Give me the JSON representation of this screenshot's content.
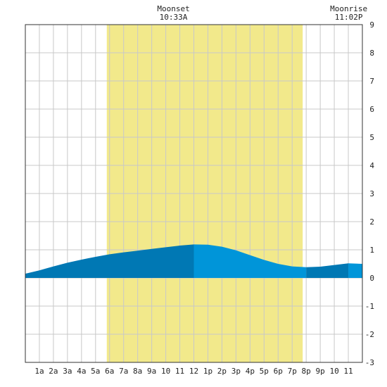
{
  "chart_data": {
    "type": "area",
    "title": "",
    "xlabel": "",
    "ylabel": "",
    "x_tick_labels": [
      "1a",
      "2a",
      "3a",
      "4a",
      "5a",
      "6a",
      "7a",
      "8a",
      "9a",
      "10",
      "11",
      "12",
      "1p",
      "2p",
      "3p",
      "4p",
      "5p",
      "6p",
      "7p",
      "8p",
      "9p",
      "10",
      "11"
    ],
    "y_tick_labels": [
      "9",
      "8",
      "7",
      "6",
      "5",
      "4",
      "3",
      "2",
      "1",
      "0",
      "-1",
      "-2",
      "-3"
    ],
    "x_range_hours": [
      0,
      24
    ],
    "ylim": [
      -3,
      9
    ],
    "grid": true,
    "daylight_hours": [
      5.8,
      19.75
    ],
    "annotations": [
      {
        "title": "Moonset",
        "time": "10:33A",
        "hour": 10.55
      },
      {
        "title": "Moonrise",
        "time": "11:02P",
        "hour": 23.03
      }
    ],
    "series": [
      {
        "x": [
          0,
          1,
          2,
          3,
          4,
          5,
          6,
          7,
          8,
          9,
          10,
          11,
          12,
          13,
          14,
          15,
          16,
          17,
          18,
          19,
          20,
          21,
          22,
          23,
          24
        ],
        "values": [
          0.15,
          0.27,
          0.41,
          0.54,
          0.65,
          0.75,
          0.84,
          0.91,
          0.97,
          1.03,
          1.09,
          1.15,
          1.19,
          1.18,
          1.11,
          0.98,
          0.81,
          0.64,
          0.5,
          0.41,
          0.38,
          0.4,
          0.46,
          0.52,
          0.5
        ]
      }
    ],
    "colors": {
      "background": "#ffffff",
      "daylight": "#f2e98b",
      "grid": "#c8c8c8",
      "rising_tide": "#0078b4",
      "falling_tide": "#0095d9",
      "frame": "#333333"
    }
  }
}
